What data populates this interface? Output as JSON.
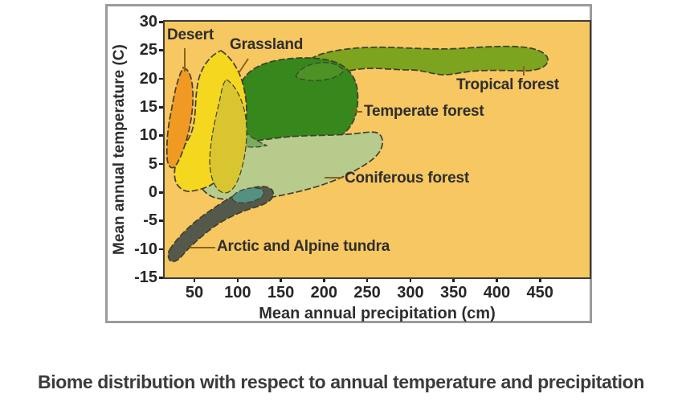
{
  "figure_caption": "Biome distribution with respect to annual temperature and precipitation",
  "chart_data": {
    "type": "area",
    "description": "Whittaker-style biome distribution diagram: labeled colored regions plotted against precipitation and temperature",
    "xlabel": "Mean annual precipitation (cm)",
    "ylabel": "Mean annual temperature (C)",
    "x_ticks": [
      50,
      100,
      150,
      200,
      250,
      300,
      350,
      400,
      450
    ],
    "y_ticks": [
      30,
      25,
      20,
      15,
      10,
      5,
      0,
      -5,
      -10,
      -15
    ],
    "xlim": [
      15,
      505
    ],
    "ylim": [
      -15,
      30
    ],
    "grid": false,
    "legend_position": "labels annotated directly on regions",
    "plot_bg": "#F7C761",
    "outline_color": "#3F3F2D",
    "pointer_color": "#8A6414",
    "overlap_colors": {
      "grassland_forest": "#D9C52F",
      "tropical_temperate": "#4E9226",
      "temperate_coniferous": "#79AC5D",
      "tundra_coniferous": "#549180"
    },
    "biomes": [
      {
        "id": "desert",
        "label": "Desert",
        "color": "#F19A23",
        "precip_cm": [
          18,
          48
        ],
        "temp_c": [
          4,
          22
        ]
      },
      {
        "id": "grassland",
        "label": "Grassland",
        "color": "#F6D71F",
        "precip_cm": [
          20,
          110
        ],
        "temp_c": [
          -3,
          25
        ]
      },
      {
        "id": "tropical-forest",
        "label": "Tropical forest",
        "color": "#7CA41E",
        "precip_cm": [
          160,
          465
        ],
        "temp_c": [
          20,
          26
        ]
      },
      {
        "id": "temperate-forest",
        "label": "Temperate forest",
        "color": "#36881D",
        "precip_cm": [
          95,
          240
        ],
        "temp_c": [
          9,
          24
        ]
      },
      {
        "id": "coniferous-forest",
        "label": "Coniferous forest",
        "color": "#B7CB8D",
        "precip_cm": [
          54,
          280
        ],
        "temp_c": [
          -1,
          11
        ]
      },
      {
        "id": "tundra",
        "label": "Arctic and Alpine tundra",
        "color": "#55594B",
        "precip_cm": [
          18,
          140
        ],
        "temp_c": [
          -12,
          1
        ]
      }
    ]
  }
}
